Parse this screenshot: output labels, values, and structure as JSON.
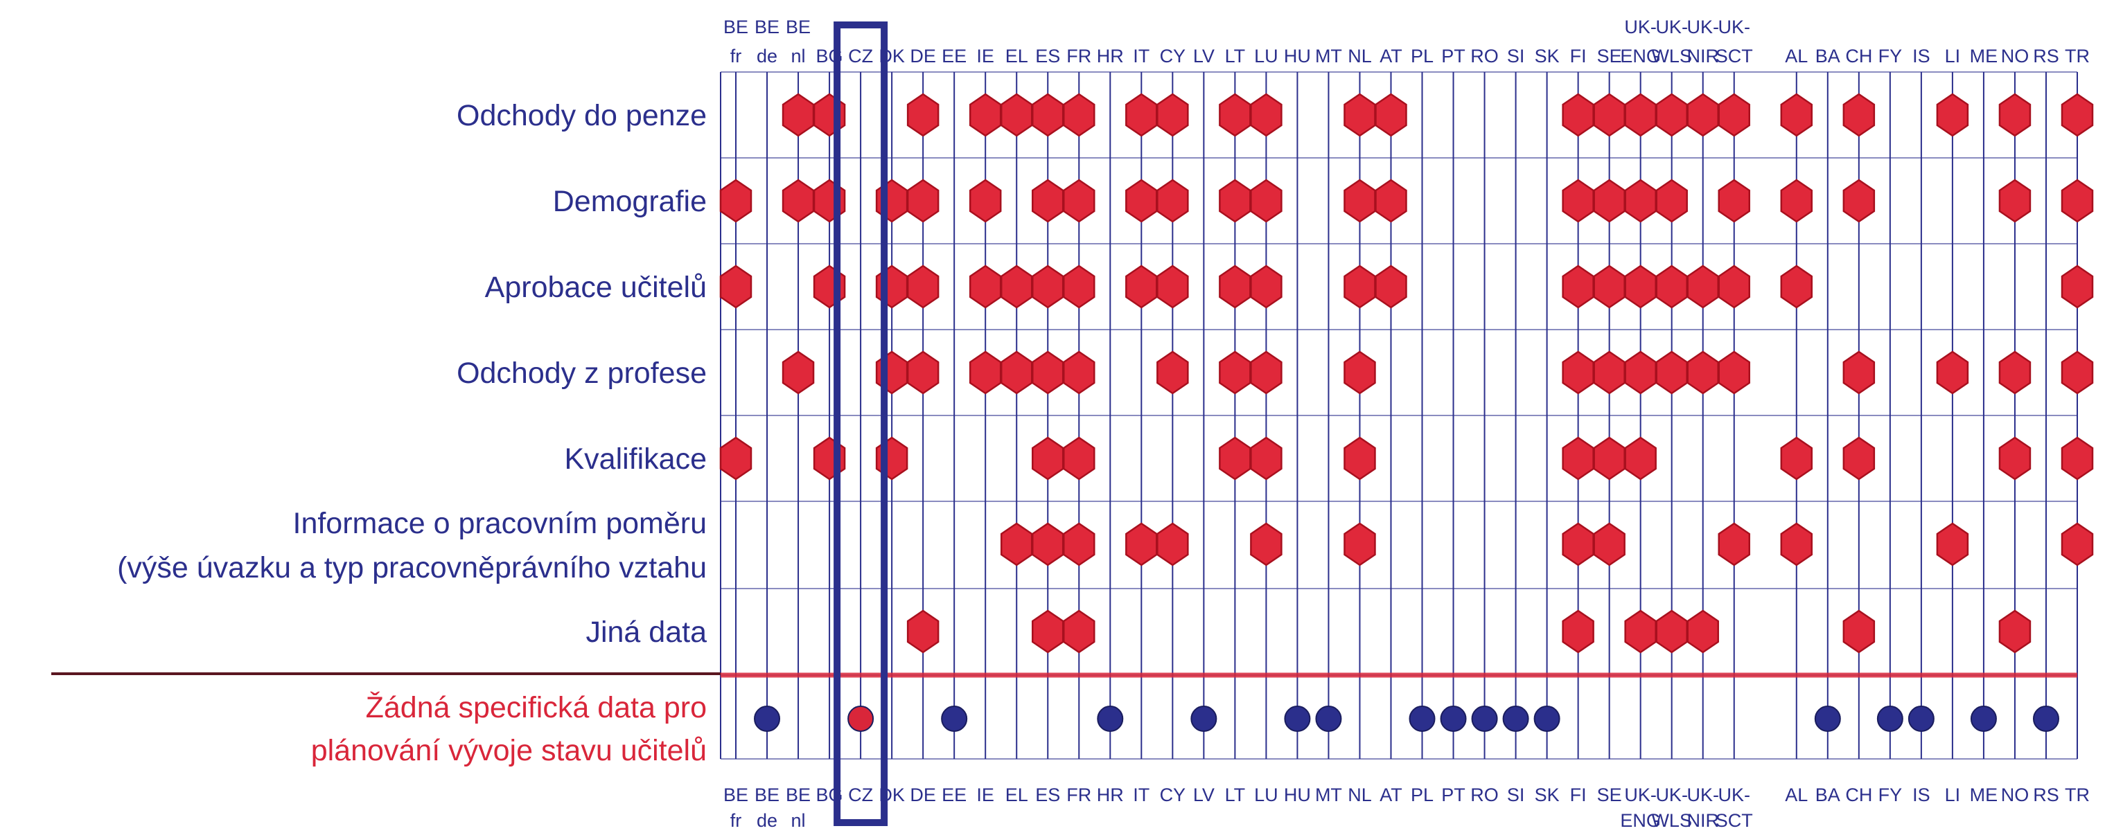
{
  "chart_data": {
    "type": "table",
    "columns": [
      [
        "BE",
        "fr"
      ],
      [
        "BE",
        "de"
      ],
      [
        "BE",
        "nl"
      ],
      [
        "BG"
      ],
      [
        "CZ"
      ],
      [
        "DK"
      ],
      [
        "DE"
      ],
      [
        "EE"
      ],
      [
        "IE"
      ],
      [
        "EL"
      ],
      [
        "ES"
      ],
      [
        "FR"
      ],
      [
        "HR"
      ],
      [
        "IT"
      ],
      [
        "CY"
      ],
      [
        "LV"
      ],
      [
        "LT"
      ],
      [
        "LU"
      ],
      [
        "HU"
      ],
      [
        "MT"
      ],
      [
        "NL"
      ],
      [
        "AT"
      ],
      [
        "PL"
      ],
      [
        "PT"
      ],
      [
        "RO"
      ],
      [
        "SI"
      ],
      [
        "SK"
      ],
      [
        "FI"
      ],
      [
        "SE"
      ],
      [
        "UK-",
        "ENG"
      ],
      [
        "UK-",
        "WLS"
      ],
      [
        "UK-",
        "NIR"
      ],
      [
        "UK-",
        "SCT"
      ],
      [],
      [
        "AL"
      ],
      [
        "BA"
      ],
      [
        "CH"
      ],
      [
        "FY"
      ],
      [
        "IS"
      ],
      [
        "LI"
      ],
      [
        "ME"
      ],
      [
        "NO"
      ],
      [
        "RS"
      ],
      [
        "TR"
      ]
    ],
    "rows": [
      {
        "label": [
          "Odchody do penze"
        ],
        "marked": [
          "BE-nl",
          "BG",
          "DE",
          "IE",
          "EL",
          "ES",
          "FR",
          "IT",
          "CY",
          "LT",
          "LU",
          "NL",
          "AT",
          "FI",
          "SE",
          "UK-ENG",
          "UK-WLS",
          "UK-NIR",
          "UK-SCT",
          "AL",
          "CH",
          "LI",
          "NO",
          "TR"
        ]
      },
      {
        "label": [
          "Demografie"
        ],
        "marked": [
          "BE-fr",
          "BE-nl",
          "BG",
          "DK",
          "DE",
          "IE",
          "ES",
          "FR",
          "IT",
          "CY",
          "LT",
          "LU",
          "NL",
          "AT",
          "FI",
          "SE",
          "UK-ENG",
          "UK-WLS",
          "UK-SCT",
          "AL",
          "CH",
          "NO",
          "TR"
        ]
      },
      {
        "label": [
          "Aprobace učitelů"
        ],
        "marked": [
          "BE-fr",
          "BG",
          "DK",
          "DE",
          "IE",
          "EL",
          "ES",
          "FR",
          "IT",
          "CY",
          "LT",
          "LU",
          "NL",
          "AT",
          "FI",
          "SE",
          "UK-ENG",
          "UK-WLS",
          "UK-NIR",
          "UK-SCT",
          "AL",
          "TR"
        ]
      },
      {
        "label": [
          "Odchody z profese"
        ],
        "marked": [
          "BE-nl",
          "DK",
          "DE",
          "IE",
          "EL",
          "ES",
          "FR",
          "CY",
          "LT",
          "LU",
          "NL",
          "FI",
          "SE",
          "UK-ENG",
          "UK-WLS",
          "UK-NIR",
          "UK-SCT",
          "CH",
          "LI",
          "NO",
          "TR"
        ]
      },
      {
        "label": [
          "Kvalifikace"
        ],
        "marked": [
          "BE-fr",
          "BG",
          "DK",
          "ES",
          "FR",
          "LT",
          "LU",
          "NL",
          "FI",
          "SE",
          "UK-ENG",
          "AL",
          "CH",
          "NO",
          "TR"
        ]
      },
      {
        "label": [
          "Informace o pracovním poměru",
          "(výše úvazku a typ pracovněprávního vztahu"
        ],
        "marked": [
          "EL",
          "ES",
          "FR",
          "IT",
          "CY",
          "LU",
          "NL",
          "FI",
          "SE",
          "UK-SCT",
          "AL",
          "LI",
          "TR"
        ]
      },
      {
        "label": [
          "Jiná data"
        ],
        "marked": [
          "DE",
          "ES",
          "FR",
          "FI",
          "UK-ENG",
          "UK-WLS",
          "UK-NIR",
          "CH",
          "NO"
        ]
      }
    ],
    "no_data_row": {
      "label": [
        "Žádná specifická data pro",
        "plánování vývoje stavu učitelů"
      ],
      "marked": [
        "BE-de",
        "CZ",
        "EE",
        "HR",
        "LV",
        "HU",
        "MT",
        "PL",
        "PT",
        "RO",
        "SI",
        "SK",
        "BA",
        "FY",
        "IS",
        "ME",
        "RS"
      ]
    },
    "highlight_column": "CZ",
    "colors": {
      "grid": "#2b2f8c",
      "grid_light": "#8a8cc0",
      "hexagon_fill": "#e0283a",
      "hexagon_stroke": "#a8101e",
      "dot_fill": "#2b2f8c",
      "highlight_dot_fill": "#d9263a",
      "divider": "#d9263a",
      "divider_left": "#5a1620",
      "row_label": "#2b2f8c",
      "none_label": "#d9263a",
      "highlight_box": "#2b2f8c"
    }
  }
}
